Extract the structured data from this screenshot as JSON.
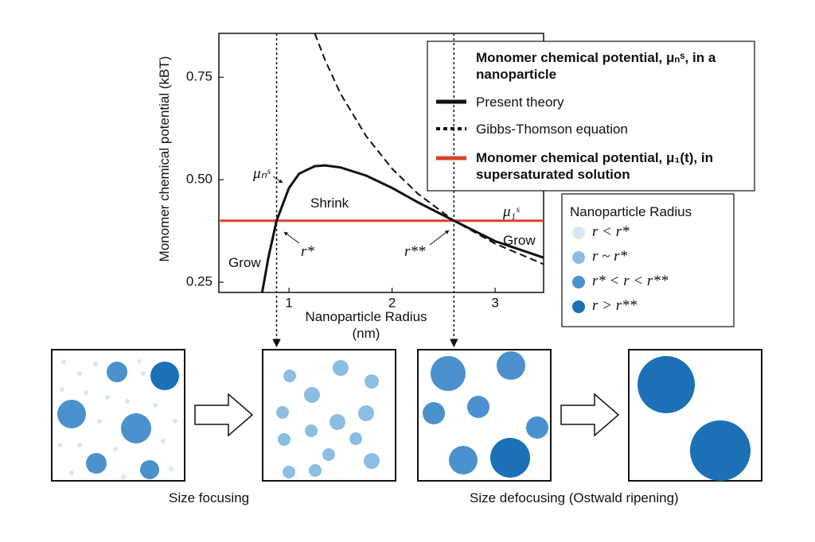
{
  "chart_data": {
    "type": "line",
    "x_label": "Nanoparticle Radius (nm)",
    "y_label": "Monomer chemical potential (kBT)",
    "xlim": [
      0.32,
      3.47
    ],
    "ylim": [
      0.225,
      0.857
    ],
    "xticks": [
      1,
      2,
      3
    ],
    "yticks": [
      0.25,
      {
        "value": 0.5,
        "label": "0.50"
      },
      0.75
    ],
    "x": [
      0.74,
      0.8,
      0.88,
      1.0,
      1.1,
      1.25,
      1.35,
      1.5,
      1.75,
      2.0,
      2.25,
      2.6,
      3.0,
      3.47
    ],
    "series": [
      {
        "name": "Present theory",
        "color": "#111111",
        "style": "solid",
        "values": [
          0.225,
          0.31,
          0.4,
          0.48,
          0.515,
          0.533,
          0.535,
          0.53,
          0.51,
          0.48,
          0.445,
          0.4,
          0.35,
          0.31
        ]
      },
      {
        "name": "Gibbs-Thomson equation",
        "color": "#111111",
        "style": "dashed",
        "values": [
          null,
          null,
          null,
          null,
          null,
          0.857,
          0.792,
          0.71,
          0.606,
          0.527,
          0.466,
          0.4,
          0.344,
          0.294
        ]
      }
    ],
    "reference_line": {
      "name": "Monomer chemical potential, μ₁(t), in supersaturated solution",
      "value": 0.4,
      "color": "#d9412b"
    },
    "legend_title": "Monomer chemical potential, μₙˢ, in a nanoparticle",
    "vlines": [
      0.88,
      2.6
    ],
    "annotations": [
      "μₙˢ",
      "Shrink",
      "Grow",
      "r*",
      "r**",
      "μ₁ˢ",
      "Grow"
    ]
  },
  "particle_legend": {
    "title": "Nanoparticle Radius",
    "items": [
      {
        "label": "r < r*",
        "color": "#d6e7f4"
      },
      {
        "label": "r ~ r*",
        "color": "#8cbde3"
      },
      {
        "label": "r* < r < r**",
        "color": "#4a91cd"
      },
      {
        "label": "r > r**",
        "color": "#1b70b6"
      }
    ]
  },
  "captions": [
    "Size focusing",
    "Size defocusing (Ostwald ripening)"
  ]
}
